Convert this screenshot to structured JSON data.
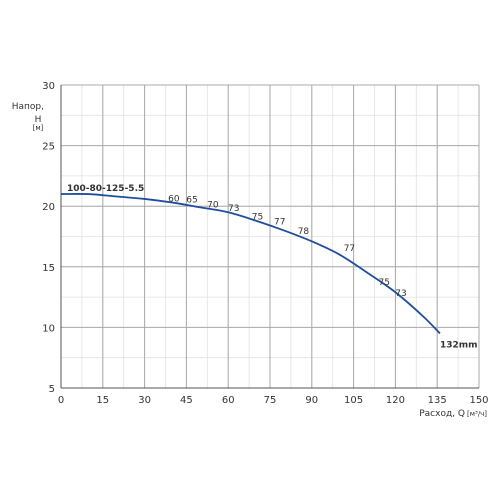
{
  "chart_data": {
    "type": "line",
    "title": "",
    "xlabel": "Расход, Q",
    "xunit": "[м³/ч]",
    "ylabel_line1": "Напор,",
    "ylabel_line2": "H",
    "yunit": "[м]",
    "xlim": [
      0,
      150
    ],
    "ylim": [
      5,
      30
    ],
    "x_ticks": [
      0,
      15,
      30,
      45,
      60,
      75,
      90,
      105,
      120,
      135,
      150
    ],
    "y_ticks": [
      5,
      10,
      15,
      20,
      25,
      30
    ],
    "x_minor_step": 7.5,
    "y_minor_step": 2.5,
    "grid": true,
    "series": [
      {
        "name": "132mm",
        "color": "#1f4e9c",
        "x": [
          0,
          10,
          20,
          30,
          40,
          50,
          60,
          70,
          80,
          90,
          100,
          110,
          120,
          130,
          136
        ],
        "y": [
          21,
          21,
          20.8,
          20.6,
          20.3,
          19.9,
          19.5,
          18.8,
          18,
          17.1,
          16.0,
          14.5,
          12.9,
          10.9,
          9.5
        ]
      }
    ],
    "model_label": "100-80-125-5.5",
    "efficiency_labels": [
      {
        "text": "60",
        "x": 40.5,
        "y": 20.4
      },
      {
        "text": "65",
        "x": 47,
        "y": 20.3
      },
      {
        "text": "70",
        "x": 54.5,
        "y": 19.9
      },
      {
        "text": "73",
        "x": 62,
        "y": 19.6
      },
      {
        "text": "75",
        "x": 70.5,
        "y": 18.9
      },
      {
        "text": "77",
        "x": 78.5,
        "y": 18.5
      },
      {
        "text": "78",
        "x": 87,
        "y": 17.7
      },
      {
        "text": "77",
        "x": 103.5,
        "y": 16.3
      },
      {
        "text": "75",
        "x": 116,
        "y": 13.5
      },
      {
        "text": "73",
        "x": 122,
        "y": 12.6
      }
    ]
  }
}
